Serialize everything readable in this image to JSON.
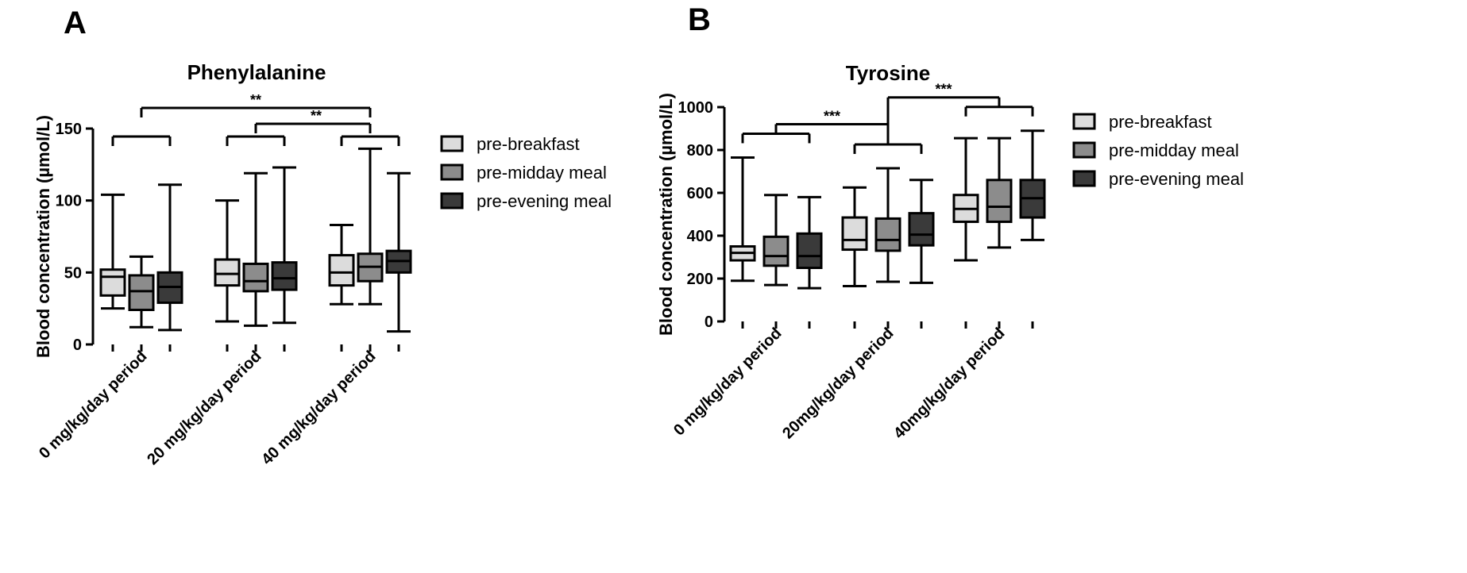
{
  "chart_data": [
    {
      "panel": "A",
      "type": "boxplot",
      "title": "Phenylalanine",
      "ylabel": "Blood concentration (µmol/L)",
      "xlabel": "",
      "ylim": [
        0,
        150
      ],
      "yticks": [
        0,
        50,
        100,
        150
      ],
      "categories": [
        "0 mg/kg/day period",
        "20 mg/kg/day period",
        "40 mg/kg/day period"
      ],
      "legend_position": "right",
      "series": [
        {
          "name": "pre-breakfast",
          "color": "#dcdcdc",
          "boxes": [
            {
              "min": 25,
              "q1": 34,
              "median": 47,
              "q3": 52,
              "max": 104
            },
            {
              "min": 16,
              "q1": 41,
              "median": 49,
              "q3": 59,
              "max": 100
            },
            {
              "min": 28,
              "q1": 41,
              "median": 50,
              "q3": 62,
              "max": 83
            }
          ]
        },
        {
          "name": "pre-midday meal",
          "color": "#8c8c8c",
          "boxes": [
            {
              "min": 12,
              "q1": 24,
              "median": 37,
              "q3": 48,
              "max": 61
            },
            {
              "min": 13,
              "q1": 37,
              "median": 44,
              "q3": 56,
              "max": 119
            },
            {
              "min": 28,
              "q1": 44,
              "median": 54,
              "q3": 63,
              "max": 136
            }
          ]
        },
        {
          "name": "pre-evening meal",
          "color": "#3a3a3a",
          "boxes": [
            {
              "min": 10,
              "q1": 29,
              "median": 40,
              "q3": 50,
              "max": 111
            },
            {
              "min": 15,
              "q1": 38,
              "median": 46,
              "q3": 57,
              "max": 123
            },
            {
              "min": 9,
              "q1": 50,
              "median": 58,
              "q3": 65,
              "max": 119
            }
          ]
        }
      ],
      "significance": [
        {
          "label": "**",
          "from_group": 0,
          "to_group": 2,
          "to_series": 1
        },
        {
          "label": "**",
          "from_group": 1,
          "to_group": 2,
          "to_series": 1
        }
      ]
    },
    {
      "panel": "B",
      "type": "boxplot",
      "title": "Tyrosine",
      "ylabel": "Blood concentration (µmol/L)",
      "xlabel": "",
      "ylim": [
        0,
        1000
      ],
      "yticks": [
        0,
        200,
        400,
        600,
        800,
        1000
      ],
      "categories": [
        "0 mg/kg/day period",
        "20mg/kg/day period",
        "40mg/kg/day period"
      ],
      "legend_position": "right",
      "series": [
        {
          "name": "pre-breakfast",
          "color": "#dcdcdc",
          "boxes": [
            {
              "min": 190,
              "q1": 285,
              "median": 320,
              "q3": 350,
              "max": 765
            },
            {
              "min": 165,
              "q1": 335,
              "median": 380,
              "q3": 485,
              "max": 625
            },
            {
              "min": 285,
              "q1": 465,
              "median": 525,
              "q3": 590,
              "max": 855
            }
          ]
        },
        {
          "name": "pre-midday meal",
          "color": "#8c8c8c",
          "boxes": [
            {
              "min": 170,
              "q1": 260,
              "median": 305,
              "q3": 395,
              "max": 590
            },
            {
              "min": 185,
              "q1": 330,
              "median": 380,
              "q3": 480,
              "max": 715
            },
            {
              "min": 345,
              "q1": 465,
              "median": 535,
              "q3": 660,
              "max": 855
            }
          ]
        },
        {
          "name": "pre-evening meal",
          "color": "#3a3a3a",
          "boxes": [
            {
              "min": 155,
              "q1": 250,
              "median": 305,
              "q3": 410,
              "max": 580
            },
            {
              "min": 180,
              "q1": 355,
              "median": 405,
              "q3": 505,
              "max": 660
            },
            {
              "min": 380,
              "q1": 485,
              "median": 575,
              "q3": 660,
              "max": 890
            }
          ]
        }
      ],
      "significance": [
        {
          "label": "***",
          "from_group": 0,
          "to_group": 1
        },
        {
          "label": "***",
          "from_group": 1,
          "to_group": 2
        }
      ]
    }
  ]
}
